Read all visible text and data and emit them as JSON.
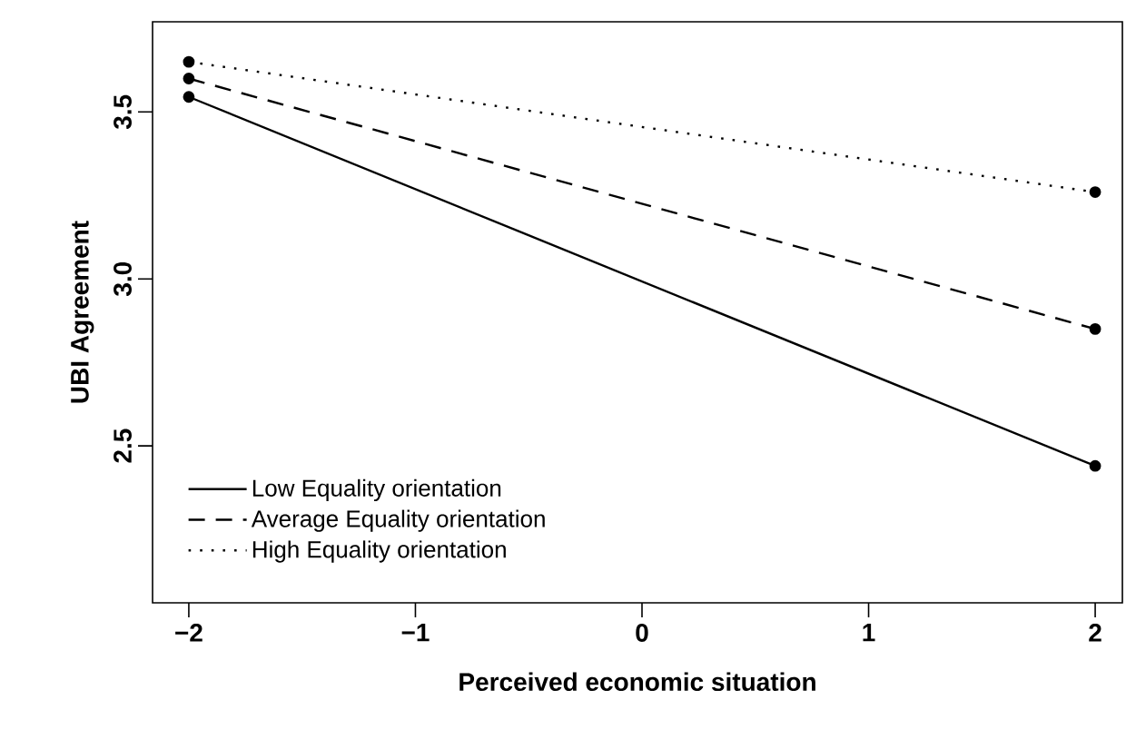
{
  "chart_data": {
    "type": "line",
    "xlabel": "Perceived economic situation",
    "ylabel": "UBI Agreement",
    "x": [
      -2,
      2
    ],
    "xlim": [
      -2.16,
      2.12
    ],
    "ylim": [
      2.03,
      3.77
    ],
    "xticks": [
      {
        "value": -2,
        "label": "−2"
      },
      {
        "value": -1,
        "label": "−1"
      },
      0,
      1,
      2
    ],
    "yticks": [
      {
        "value": 2.5,
        "label": "2.5"
      },
      {
        "value": 3.0,
        "label": "3.0"
      },
      {
        "value": 3.5,
        "label": "3.5"
      }
    ],
    "marker": "circle",
    "legend": "bottom left",
    "grid": false,
    "series": [
      {
        "name": "Low Equality orientation",
        "color": "#000000",
        "line_style": "solid",
        "values": [
          3.545,
          2.44
        ]
      },
      {
        "name": "Average Equality orientation",
        "color": "#000000",
        "line_style": "dashed",
        "values": [
          3.6,
          2.85
        ]
      },
      {
        "name": "High Equality orientation",
        "color": "#000000",
        "line_style": "dotted",
        "values": [
          3.65,
          3.26
        ]
      }
    ]
  }
}
